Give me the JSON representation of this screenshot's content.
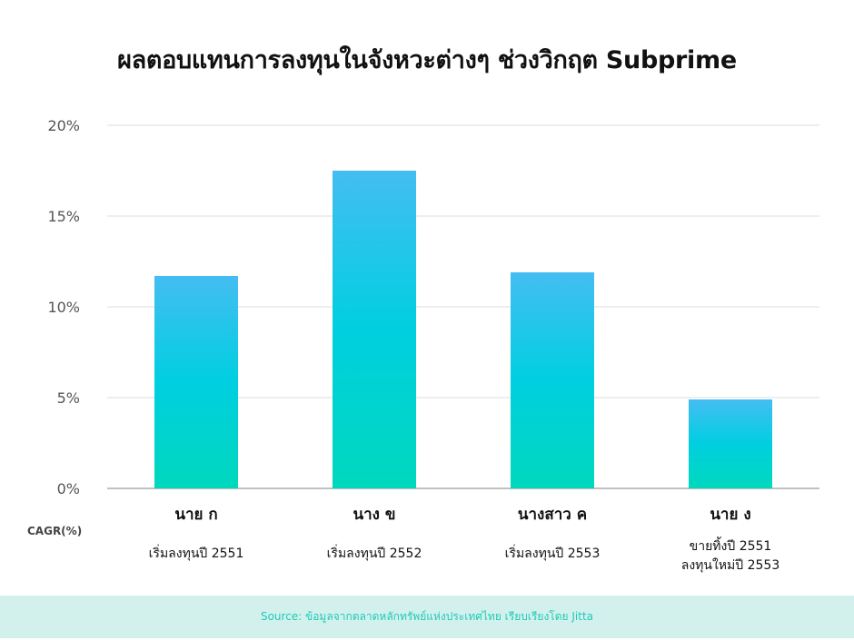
{
  "title": "ผลตอบแทนการลงทุนในจังหวะต่างๆ ช่วงวิกฤต Subprime",
  "source": "Source: ข้อมูลจากตลาดหลักทรัพย์แห่งประเทศไทย เรียบเรียงโดย Jitta",
  "colors": {
    "bar_top": "#44bdf2",
    "bar_bottom": "#00d8bd",
    "grid": "#dedede",
    "axis": "#9a9a9a"
  },
  "chart_data": {
    "type": "bar",
    "ylabel": "CAGR(%)",
    "ylim": [
      0,
      20
    ],
    "yticks": [
      "0%",
      "5%",
      "10%",
      "15%",
      "20%"
    ],
    "grid": true,
    "categories": [
      {
        "name": "นาย ก",
        "detail": [
          "เริ่มลงทุนปี 2551"
        ]
      },
      {
        "name": "นาง ข",
        "detail": [
          "เริ่มลงทุนปี 2552"
        ]
      },
      {
        "name": "นางสาว ค",
        "detail": [
          "เริ่มลงทุนปี 2553"
        ]
      },
      {
        "name": "นาย ง",
        "detail": [
          "ขายทิ้งปี 2551",
          "ลงทุนใหม่ปี 2553"
        ]
      }
    ],
    "values": [
      11.7,
      17.5,
      11.9,
      4.9
    ]
  }
}
